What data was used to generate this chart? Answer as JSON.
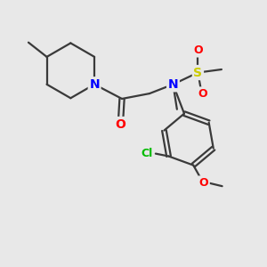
{
  "background_color": "#e8e8e8",
  "bond_color": "#3a3a3a",
  "atom_colors": {
    "N": "#0000ff",
    "O": "#ff0000",
    "S": "#cccc00",
    "Cl": "#00bb00",
    "C": "#3a3a3a"
  },
  "figsize": [
    3.0,
    3.0
  ],
  "dpi": 100,
  "lw": 1.6
}
